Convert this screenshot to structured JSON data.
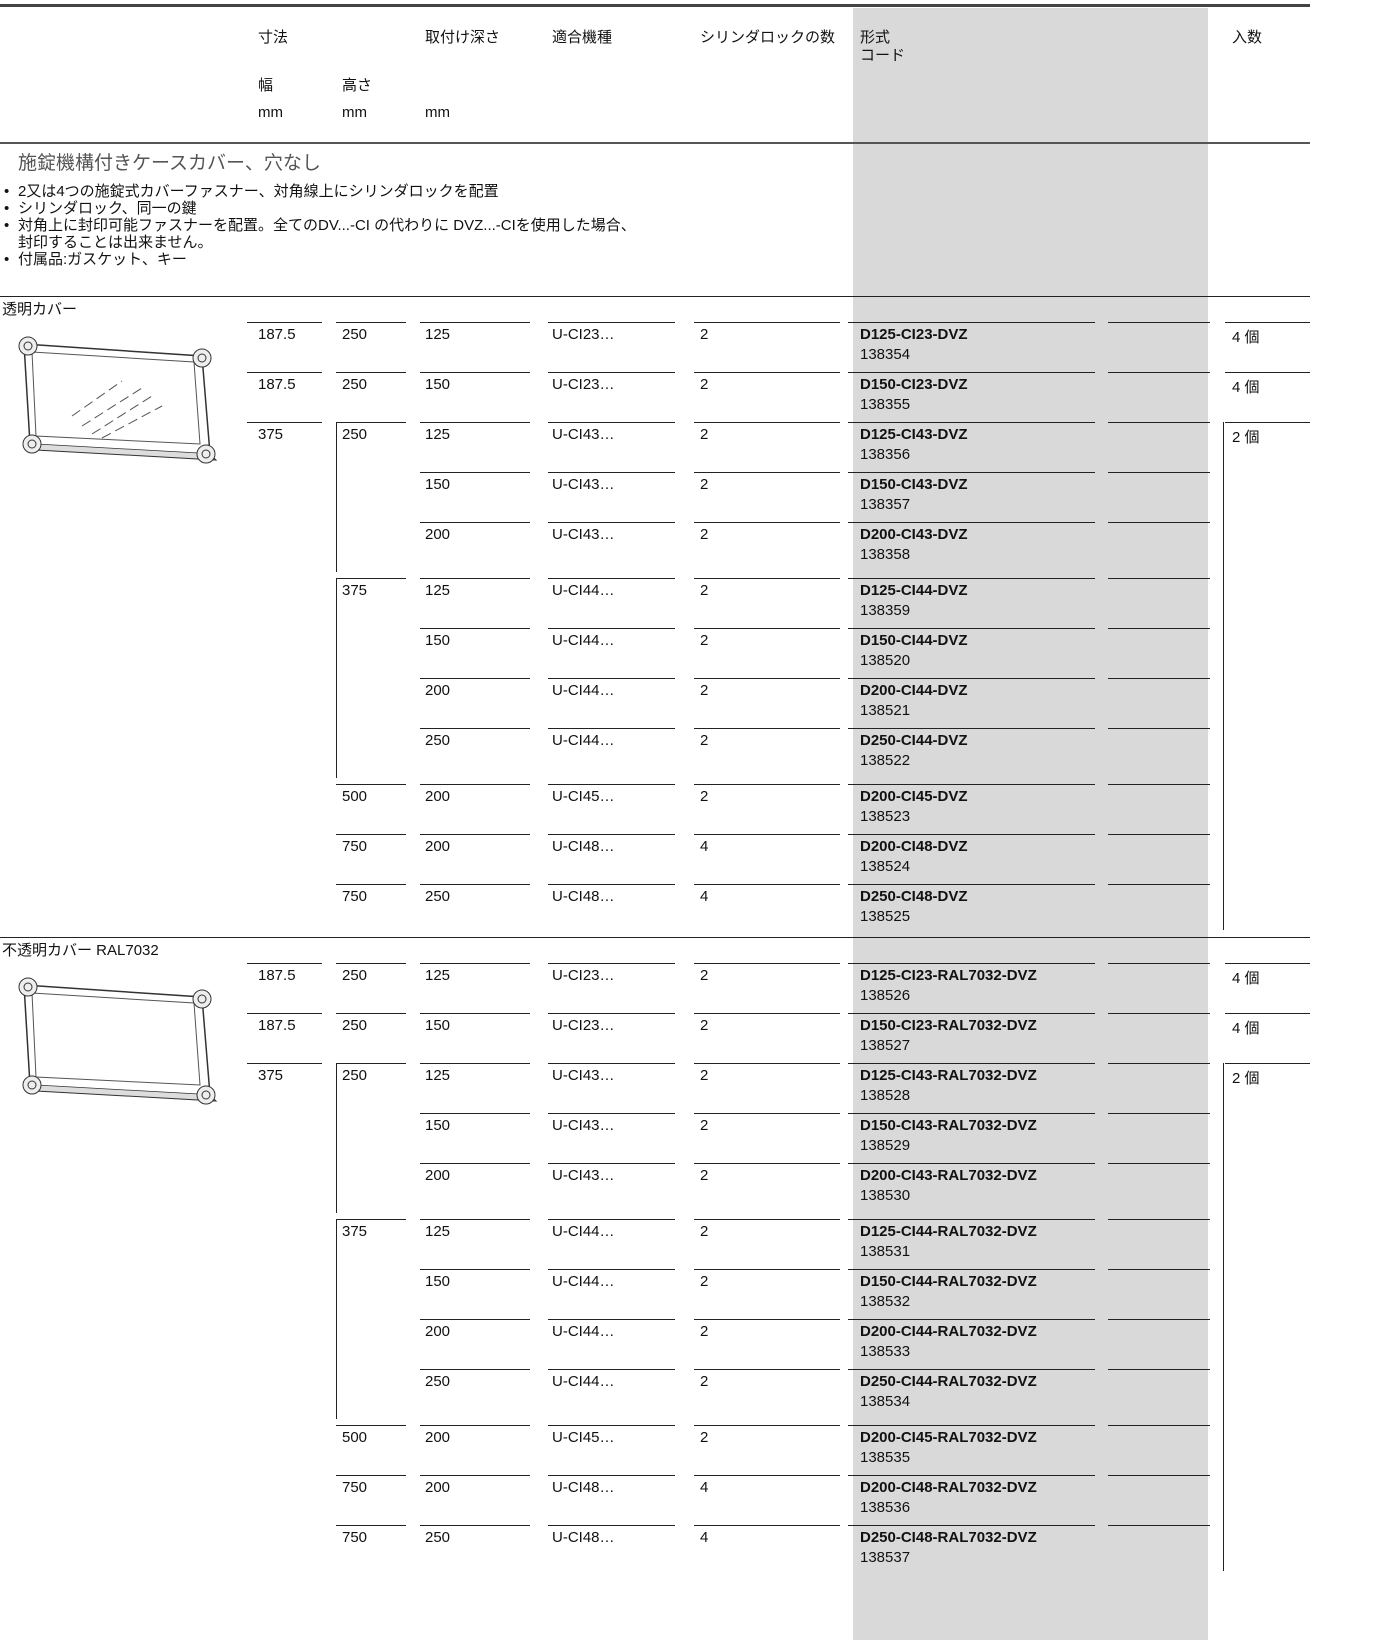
{
  "header": {
    "dimensions": "寸法",
    "mounting_depth": "取付け深さ",
    "compatible": "適合機種",
    "cylinder_locks": "シリンダロックの数",
    "type": "形式",
    "code": "コード",
    "quantity": "入数",
    "width": "幅",
    "height": "高さ",
    "unit_width": "mm",
    "unit_height": "mm",
    "unit_depth": "mm"
  },
  "section": {
    "title": "施錠機構付きケースカバー、穴なし",
    "bullets": [
      "2又は4つの施錠式カバーファスナー、対角線上にシリンダロックを配置",
      "シリンダロック、同一の鍵",
      "対角上に封印可能ファスナーを配置。全てのDV...-CI の代わりに DVZ...-CIを使用した場合、\n封印することは出来ません。",
      "付属品:ガスケット、キー"
    ]
  },
  "groups": [
    {
      "title": "透明カバー",
      "rows": [
        {
          "w": "187.5",
          "h": "250",
          "d": "125",
          "model": "U-CI23…",
          "locks": "2",
          "type": "D125-CI23-DVZ",
          "code": "138354",
          "qty": "4 個"
        },
        {
          "w": "187.5",
          "h": "250",
          "d": "150",
          "model": "U-CI23…",
          "locks": "2",
          "type": "D150-CI23-DVZ",
          "code": "138355",
          "qty": "4 個"
        },
        {
          "w": "375",
          "h": "250",
          "d": "125",
          "model": "U-CI43…",
          "locks": "2",
          "type": "D125-CI43-DVZ",
          "code": "138356",
          "qty": "2 個"
        },
        {
          "d": "150",
          "model": "U-CI43…",
          "locks": "2",
          "type": "D150-CI43-DVZ",
          "code": "138357"
        },
        {
          "d": "200",
          "model": "U-CI43…",
          "locks": "2",
          "type": "D200-CI43-DVZ",
          "code": "138358"
        },
        {
          "h": "375",
          "d": "125",
          "model": "U-CI44…",
          "locks": "2",
          "type": "D125-CI44-DVZ",
          "code": "138359"
        },
        {
          "d": "150",
          "model": "U-CI44…",
          "locks": "2",
          "type": "D150-CI44-DVZ",
          "code": "138520"
        },
        {
          "d": "200",
          "model": "U-CI44…",
          "locks": "2",
          "type": "D200-CI44-DVZ",
          "code": "138521"
        },
        {
          "d": "250",
          "model": "U-CI44…",
          "locks": "2",
          "type": "D250-CI44-DVZ",
          "code": "138522"
        },
        {
          "h": "500",
          "d": "200",
          "model": "U-CI45…",
          "locks": "2",
          "type": "D200-CI45-DVZ",
          "code": "138523"
        },
        {
          "h": "750",
          "d": "200",
          "model": "U-CI48…",
          "locks": "4",
          "type": "D200-CI48-DVZ",
          "code": "138524"
        },
        {
          "h": "750",
          "d": "250",
          "model": "U-CI48…",
          "locks": "4",
          "type": "D250-CI48-DVZ",
          "code": "138525"
        }
      ]
    },
    {
      "title": "不透明カバー RAL7032",
      "rows": [
        {
          "w": "187.5",
          "h": "250",
          "d": "125",
          "model": "U-CI23…",
          "locks": "2",
          "type": "D125-CI23-RAL7032-DVZ",
          "code": "138526",
          "qty": "4 個"
        },
        {
          "w": "187.5",
          "h": "250",
          "d": "150",
          "model": "U-CI23…",
          "locks": "2",
          "type": "D150-CI23-RAL7032-DVZ",
          "code": "138527",
          "qty": "4 個"
        },
        {
          "w": "375",
          "h": "250",
          "d": "125",
          "model": "U-CI43…",
          "locks": "2",
          "type": "D125-CI43-RAL7032-DVZ",
          "code": "138528",
          "qty": "2 個"
        },
        {
          "d": "150",
          "model": "U-CI43…",
          "locks": "2",
          "type": "D150-CI43-RAL7032-DVZ",
          "code": "138529"
        },
        {
          "d": "200",
          "model": "U-CI43…",
          "locks": "2",
          "type": "D200-CI43-RAL7032-DVZ",
          "code": "138530"
        },
        {
          "h": "375",
          "d": "125",
          "model": "U-CI44…",
          "locks": "2",
          "type": "D125-CI44-RAL7032-DVZ",
          "code": "138531"
        },
        {
          "d": "150",
          "model": "U-CI44…",
          "locks": "2",
          "type": "D150-CI44-RAL7032-DVZ",
          "code": "138532"
        },
        {
          "d": "200",
          "model": "U-CI44…",
          "locks": "2",
          "type": "D200-CI44-RAL7032-DVZ",
          "code": "138533"
        },
        {
          "d": "250",
          "model": "U-CI44…",
          "locks": "2",
          "type": "D250-CI44-RAL7032-DVZ",
          "code": "138534"
        },
        {
          "h": "500",
          "d": "200",
          "model": "U-CI45…",
          "locks": "2",
          "type": "D200-CI45-RAL7032-DVZ",
          "code": "138535"
        },
        {
          "h": "750",
          "d": "200",
          "model": "U-CI48…",
          "locks": "4",
          "type": "D200-CI48-RAL7032-DVZ",
          "code": "138536"
        },
        {
          "h": "750",
          "d": "250",
          "model": "U-CI48…",
          "locks": "4",
          "type": "D250-CI48-RAL7032-DVZ",
          "code": "138537"
        }
      ]
    }
  ]
}
